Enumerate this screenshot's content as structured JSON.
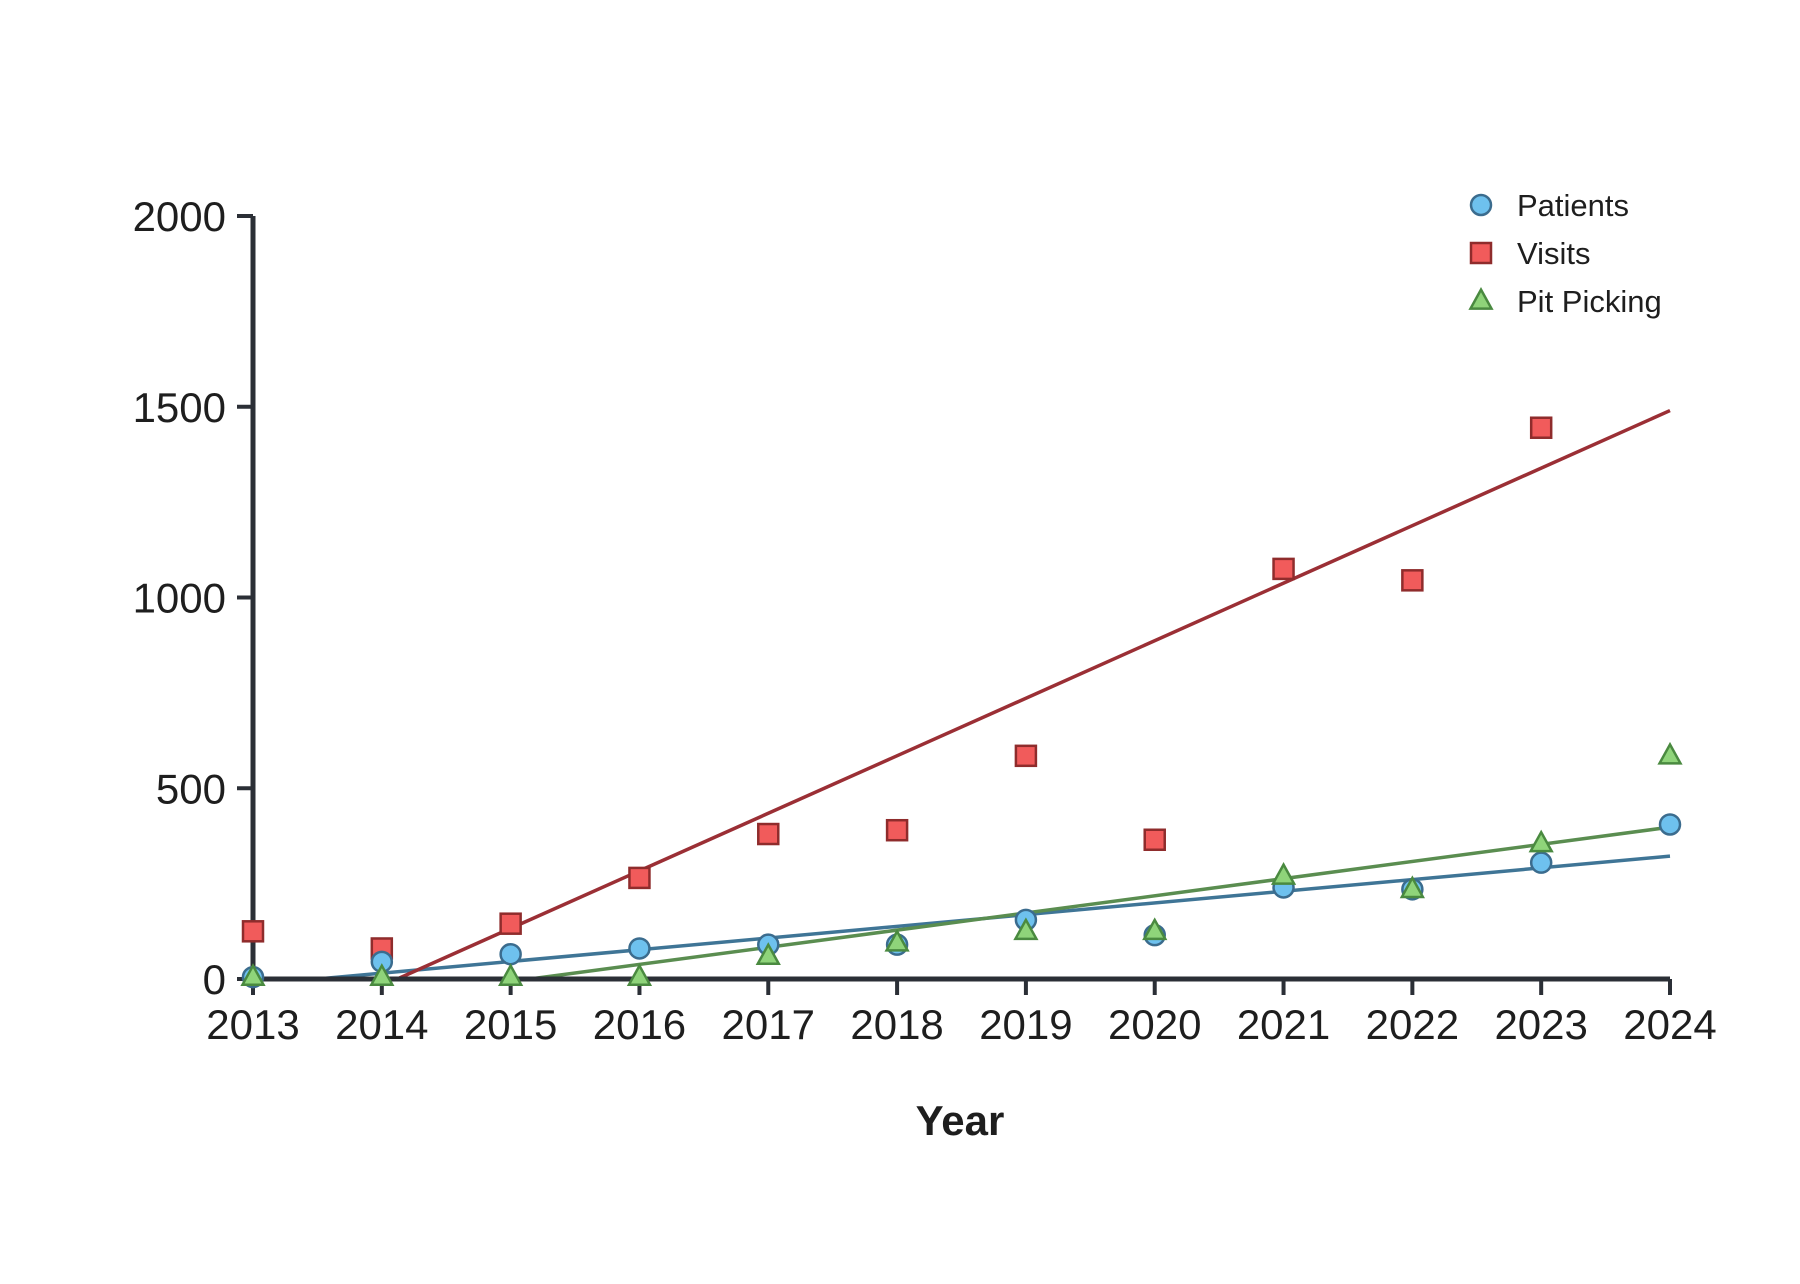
{
  "chart_data": {
    "type": "scatter",
    "title": "",
    "xlabel": "Year",
    "ylabel": "",
    "x": [
      2013,
      2014,
      2015,
      2016,
      2017,
      2018,
      2019,
      2020,
      2021,
      2022,
      2023,
      2024
    ],
    "xlim": [
      2013,
      2024
    ],
    "ylim": [
      0,
      2000
    ],
    "yticks": [
      0,
      500,
      1000,
      1500,
      2000
    ],
    "grid": false,
    "legend_position": "top-right",
    "series": [
      {
        "name": "Patients",
        "marker": "circle",
        "fill": "#6ec1ee",
        "stroke": "#3b6c8e",
        "trend_color": "#3f7596",
        "values": [
          5,
          45,
          65,
          80,
          90,
          90,
          155,
          115,
          240,
          235,
          305,
          405
        ],
        "trend": [
          2013.5,
          0,
          2024,
          322
        ]
      },
      {
        "name": "Visits",
        "marker": "square",
        "fill": "#f15b5b",
        "stroke": "#8f2c2c",
        "trend_color": "#9b2f35",
        "values": [
          125,
          80,
          145,
          265,
          380,
          390,
          585,
          365,
          1075,
          1045,
          1445,
          null
        ],
        "trend": [
          2014.12,
          0,
          2024,
          1490
        ]
      },
      {
        "name": "Pit Picking",
        "marker": "triangle",
        "fill": "#8fd47a",
        "stroke": "#4a8a40",
        "trend_color": "#5a8d50",
        "values": [
          5,
          5,
          5,
          5,
          60,
          95,
          125,
          125,
          270,
          235,
          355,
          585
        ],
        "trend": [
          2015.15,
          0,
          2024,
          398
        ]
      }
    ]
  }
}
